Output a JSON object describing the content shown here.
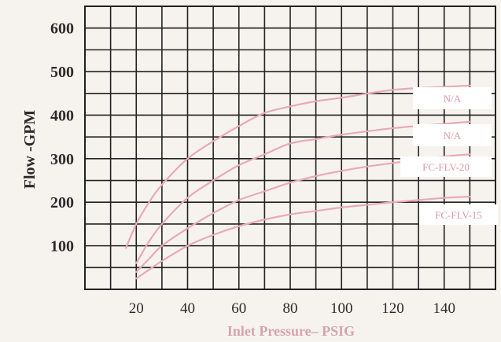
{
  "chart_data": {
    "type": "line",
    "title": "",
    "xlabel": "Inlet Pressure– PSIG",
    "ylabel": "Flow -GPM",
    "x_ticks": [
      "20",
      "40",
      "60",
      "80",
      "100",
      "120",
      "140"
    ],
    "y_ticks": [
      "600",
      "500",
      "400",
      "300",
      "200",
      "100"
    ],
    "xlim": [
      0,
      160
    ],
    "ylim": [
      0,
      650
    ],
    "grid": true,
    "series": [
      {
        "name": "N/A",
        "color": "#eaa9b7",
        "x": [
          16,
          20,
          25,
          30,
          40,
          50,
          60,
          70,
          80,
          90,
          100,
          120,
          140,
          150
        ],
        "y": [
          95,
          150,
          200,
          240,
          300,
          340,
          375,
          405,
          420,
          432,
          440,
          458,
          465,
          468
        ]
      },
      {
        "name": "N/A",
        "color": "#eaa9b7",
        "x": [
          20,
          25,
          30,
          40,
          50,
          60,
          70,
          80,
          90,
          100,
          120,
          140,
          150
        ],
        "y": [
          60,
          110,
          150,
          210,
          250,
          285,
          310,
          335,
          345,
          355,
          370,
          380,
          385
        ]
      },
      {
        "name": "FC-FLV-20",
        "color": "#eaa9b7",
        "x": [
          20,
          25,
          30,
          40,
          50,
          60,
          70,
          80,
          90,
          100,
          110,
          120,
          140,
          150
        ],
        "y": [
          40,
          70,
          100,
          140,
          175,
          205,
          225,
          245,
          260,
          272,
          282,
          290,
          305,
          310
        ]
      },
      {
        "name": "FC-FLV-15",
        "color": "#eaa9b7",
        "x": [
          20,
          25,
          30,
          40,
          50,
          60,
          70,
          80,
          90,
          100,
          110,
          120,
          130,
          140,
          150
        ],
        "y": [
          25,
          45,
          65,
          100,
          125,
          145,
          160,
          172,
          180,
          188,
          194,
          200,
          205,
          210,
          213
        ]
      }
    ]
  }
}
